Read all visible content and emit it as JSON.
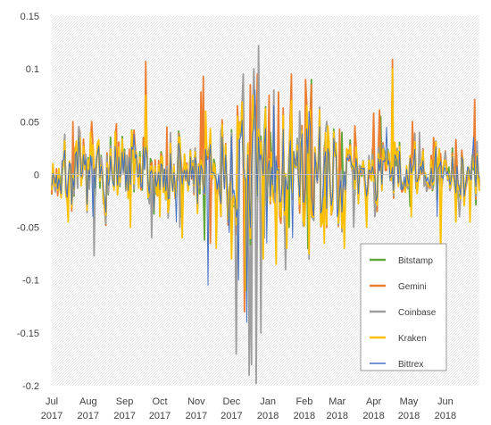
{
  "chart_data": {
    "type": "line",
    "title": "",
    "xlabel": "",
    "ylabel": "",
    "ylim": [
      -0.2,
      0.15
    ],
    "y_ticks": [
      0.15,
      0.1,
      0.05,
      0,
      -0.05,
      -0.1,
      -0.15,
      -0.2
    ],
    "y_tick_labels": [
      "0.15",
      "0.1",
      "0.05",
      "0",
      "-0.05",
      "-0.1",
      "-0.15",
      "-0.2"
    ],
    "x_range": [
      "2017-07-01",
      "2018-06-30"
    ],
    "x_ticks": [
      {
        "date": "2017-07-01",
        "month": "Jul",
        "year": "2017"
      },
      {
        "date": "2017-08-01",
        "month": "Aug",
        "year": "2017"
      },
      {
        "date": "2017-09-01",
        "month": "Sep",
        "year": "2017"
      },
      {
        "date": "2017-10-01",
        "month": "Oct",
        "year": "2017"
      },
      {
        "date": "2017-11-01",
        "month": "Nov",
        "year": "2017"
      },
      {
        "date": "2017-12-01",
        "month": "Dec",
        "year": "2017"
      },
      {
        "date": "2018-01-01",
        "month": "Jan",
        "year": "2018"
      },
      {
        "date": "2018-02-01",
        "month": "Feb",
        "year": "2018"
      },
      {
        "date": "2018-03-01",
        "month": "Mar",
        "year": "2018"
      },
      {
        "date": "2018-04-01",
        "month": "Apr",
        "year": "2018"
      },
      {
        "date": "2018-05-01",
        "month": "May",
        "year": "2018"
      },
      {
        "date": "2018-06-01",
        "month": "Jun",
        "year": "2018"
      }
    ],
    "legend_position": "lower-right",
    "background": "hatched",
    "series": [
      {
        "name": "Bitstamp",
        "color": "#5fa83c",
        "width": 1.8,
        "values": [
          [
            "2017-09-17",
            0.035
          ],
          [
            "2017-10-19",
            -0.04
          ],
          [
            "2017-11-08",
            -0.062
          ],
          [
            "2017-11-26",
            0.02
          ],
          [
            "2017-12-07",
            0.03
          ],
          [
            "2017-12-18",
            -0.06
          ],
          [
            "2018-01-03",
            0.04
          ],
          [
            "2018-01-19",
            -0.05
          ],
          [
            "2018-02-04",
            -0.07
          ],
          [
            "2018-02-07",
            0.09
          ],
          [
            "2018-03-05",
            0.04
          ],
          [
            "2018-04-07",
            0.055
          ],
          [
            "2018-05-02",
            -0.03
          ],
          [
            "2018-06-10",
            0.03
          ]
        ]
      },
      {
        "name": "Gemini",
        "color": "#ed7d31",
        "width": 1.8,
        "values": [
          [
            "2017-07-06",
            -0.02
          ],
          [
            "2017-07-19",
            0.05
          ],
          [
            "2017-08-04",
            0.05
          ],
          [
            "2017-08-25",
            0.048
          ],
          [
            "2017-09-09",
            0.042
          ],
          [
            "2017-09-19",
            0.107
          ],
          [
            "2017-10-07",
            0.045
          ],
          [
            "2017-11-05",
            0.078
          ],
          [
            "2017-11-07",
            0.093
          ],
          [
            "2017-11-13",
            -0.065
          ],
          [
            "2017-12-06",
            0.065
          ],
          [
            "2017-12-12",
            -0.13
          ],
          [
            "2017-12-17",
            0.085
          ],
          [
            "2017-12-23",
            0.095
          ],
          [
            "2018-01-02",
            0.075
          ],
          [
            "2018-01-10",
            0.078
          ],
          [
            "2018-01-14",
            0.063
          ],
          [
            "2018-01-21",
            0.095
          ],
          [
            "2018-02-02",
            0.09
          ],
          [
            "2018-02-07",
            0.085
          ],
          [
            "2018-02-14",
            0.06
          ],
          [
            "2018-03-03",
            0.043
          ],
          [
            "2018-03-16",
            0.046
          ],
          [
            "2018-04-01",
            0.058
          ],
          [
            "2018-04-06",
            0.061
          ],
          [
            "2018-04-17",
            0.109
          ],
          [
            "2018-05-04",
            0.05
          ],
          [
            "2018-05-22",
            0.035
          ],
          [
            "2018-06-10",
            0.033
          ],
          [
            "2018-06-26",
            0.071
          ]
        ]
      },
      {
        "name": "Coinbase",
        "color": "#9e9e9e",
        "width": 1.8,
        "values": [
          [
            "2017-08-06",
            -0.077
          ],
          [
            "2017-09-24",
            -0.06
          ],
          [
            "2017-10-18",
            -0.05
          ],
          [
            "2017-11-22",
            0.04
          ],
          [
            "2017-12-05",
            -0.17
          ],
          [
            "2017-12-11",
            0.095
          ],
          [
            "2017-12-16",
            -0.19
          ],
          [
            "2017-12-18",
            -0.18
          ],
          [
            "2017-12-20",
            0.1
          ],
          [
            "2017-12-22",
            -0.198
          ],
          [
            "2017-12-24",
            0.122
          ],
          [
            "2017-12-26",
            -0.15
          ],
          [
            "2017-12-29",
            -0.06
          ],
          [
            "2018-01-06",
            0.08
          ],
          [
            "2018-01-16",
            -0.09
          ],
          [
            "2018-01-28",
            0.06
          ],
          [
            "2018-02-05",
            -0.08
          ],
          [
            "2018-02-20",
            0.05
          ],
          [
            "2018-03-15",
            -0.05
          ],
          [
            "2018-04-02",
            -0.04
          ],
          [
            "2018-05-10",
            0.04
          ],
          [
            "2018-06-13",
            -0.04
          ]
        ]
      },
      {
        "name": "Kraken",
        "color": "#ffc000",
        "width": 1.8,
        "values": [
          [
            "2017-07-15",
            -0.045
          ],
          [
            "2017-08-03",
            0.04
          ],
          [
            "2017-09-06",
            -0.05
          ],
          [
            "2017-09-19",
            0.075
          ],
          [
            "2017-10-01",
            -0.04
          ],
          [
            "2017-10-20",
            -0.06
          ],
          [
            "2017-11-09",
            0.06
          ],
          [
            "2017-11-18",
            -0.07
          ],
          [
            "2017-12-01",
            -0.08
          ],
          [
            "2017-12-06",
            0.055
          ],
          [
            "2017-12-13",
            -0.11
          ],
          [
            "2017-12-19",
            0.075
          ],
          [
            "2017-12-28",
            -0.08
          ],
          [
            "2018-01-08",
            -0.085
          ],
          [
            "2018-01-17",
            -0.07
          ],
          [
            "2018-01-21",
            0.07
          ],
          [
            "2018-02-05",
            -0.075
          ],
          [
            "2018-02-18",
            -0.065
          ],
          [
            "2018-03-07",
            -0.07
          ],
          [
            "2018-03-26",
            -0.05
          ],
          [
            "2018-04-17",
            0.1
          ],
          [
            "2018-05-03",
            -0.04
          ],
          [
            "2018-05-28",
            -0.077
          ],
          [
            "2018-06-10",
            -0.045
          ],
          [
            "2018-06-22",
            -0.045
          ]
        ]
      },
      {
        "name": "Bittrex",
        "color": "#4472c4",
        "width": 1.0,
        "values": [
          [
            "2017-08-05",
            -0.04
          ],
          [
            "2017-09-09",
            0.038
          ],
          [
            "2017-10-15",
            -0.045
          ],
          [
            "2017-11-11",
            -0.105
          ],
          [
            "2017-11-29",
            -0.055
          ],
          [
            "2017-12-07",
            -0.1
          ],
          [
            "2017-12-14",
            -0.14
          ],
          [
            "2017-12-21",
            0.08
          ],
          [
            "2017-12-31",
            -0.065
          ],
          [
            "2018-01-06",
            0.065
          ],
          [
            "2018-01-22",
            -0.06
          ],
          [
            "2018-02-05",
            0.06
          ],
          [
            "2018-03-01",
            -0.04
          ],
          [
            "2018-04-12",
            0.045
          ],
          [
            "2018-05-25",
            -0.04
          ],
          [
            "2018-06-25",
            0.035
          ]
        ]
      }
    ]
  }
}
